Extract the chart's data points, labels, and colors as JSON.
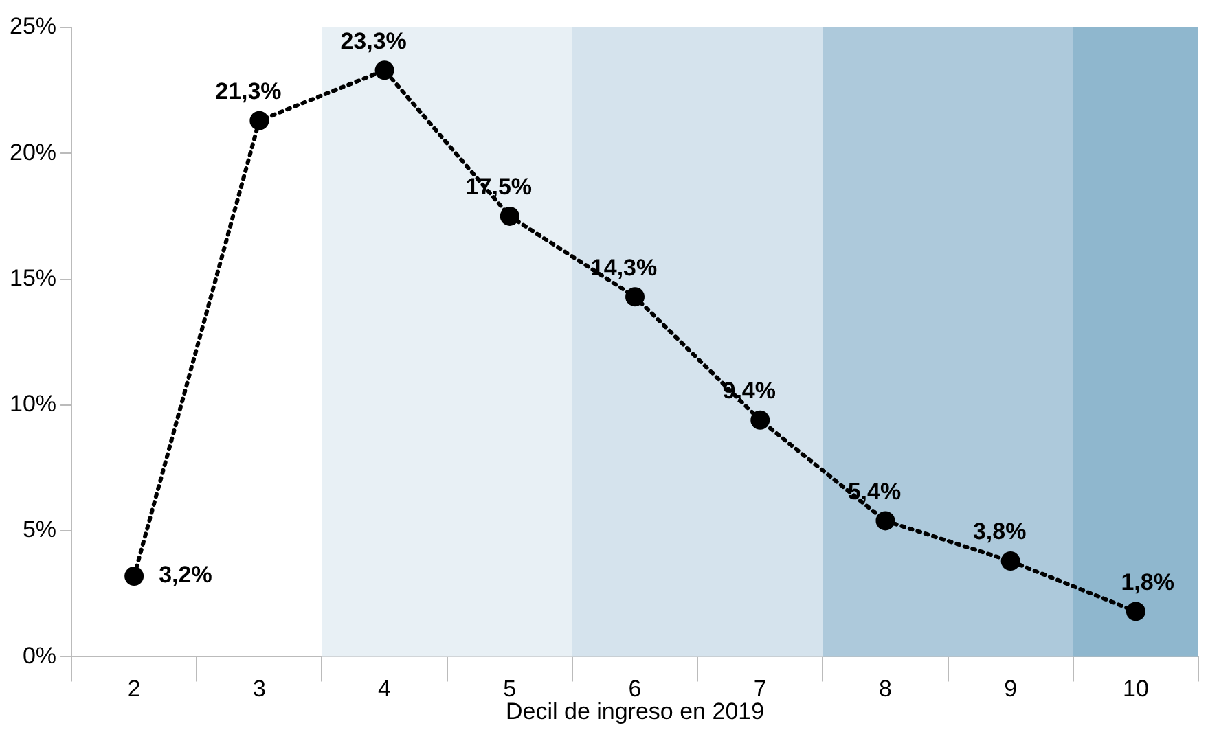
{
  "chart_data": {
    "type": "line",
    "xlabel": "Decil de ingreso en 2019",
    "categories": [
      "2",
      "3",
      "4",
      "5",
      "6",
      "7",
      "8",
      "9",
      "10"
    ],
    "values": [
      3.2,
      21.3,
      23.3,
      17.5,
      14.3,
      9.4,
      5.4,
      3.8,
      1.8
    ],
    "value_labels": [
      "3,2%",
      "21,3%",
      "23,3%",
      "17,5%",
      "14,3%",
      "9,4%",
      "5,4%",
      "3,8%",
      "1,8%"
    ],
    "color": "#000000",
    "marker": "circle",
    "line_style": "dotted",
    "grid": false,
    "legend": false,
    "ylim": [
      0,
      25
    ],
    "yticks": [
      {
        "value": 0,
        "label": "0%"
      },
      {
        "value": 5,
        "label": "5%"
      },
      {
        "value": 10,
        "label": "10%"
      },
      {
        "value": 15,
        "label": "15%"
      },
      {
        "value": 20,
        "label": "20%"
      },
      {
        "value": 25,
        "label": "25%"
      }
    ],
    "bands": [
      {
        "axis": "x",
        "from": "4",
        "to": "5",
        "color": "#e8f0f5"
      },
      {
        "axis": "x",
        "from": "6",
        "to": "7",
        "color": "#d5e3ed"
      },
      {
        "axis": "x",
        "from": "8",
        "to": "9",
        "color": "#adc9db"
      },
      {
        "axis": "x",
        "from": "10",
        "to": "10",
        "color": "#8fb7ce"
      }
    ]
  }
}
